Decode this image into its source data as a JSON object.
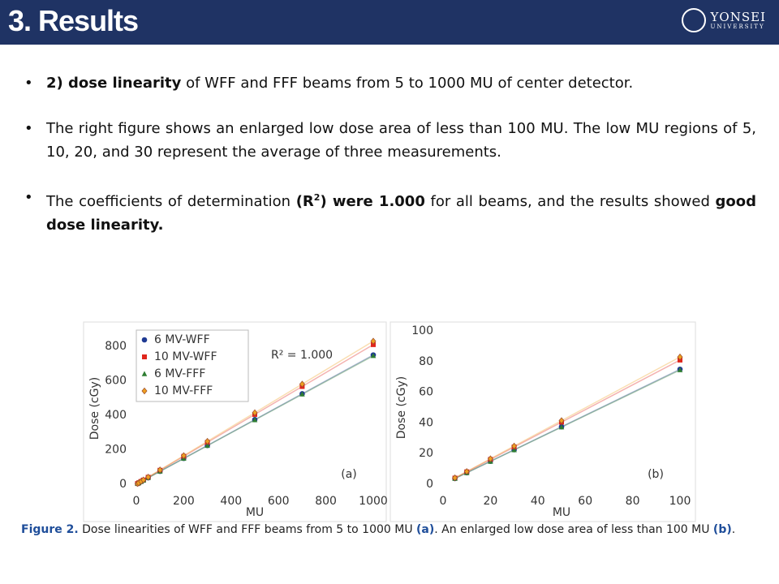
{
  "header": {
    "title": "3. Results",
    "logo_top": "YONSEI",
    "logo_bottom": "UNIVERSITY"
  },
  "bullets": [
    {
      "parts": [
        "2) dose linearity",
        " of WFF and FFF beams from 5 to 1000 MU of center detector."
      ]
    },
    {
      "parts": [
        "The right figure shows an enlarged low dose area of less than 100 MU. The low MU regions of 5, 10, 20, and 30 represent the average of three measurements."
      ]
    },
    {
      "parts": [
        "The coefficients of determination ",
        "(R",
        "2",
        ") were 1.000",
        " for all beams, and the results showed ",
        "good dose linearity."
      ]
    }
  ],
  "caption": {
    "parts": [
      "Figure 2.",
      " Dose linearities of WFF and FFF beams from 5 to 1000 MU ",
      "(a)",
      ". An enlarged low dose area of less than 100 MU ",
      "(b)",
      "."
    ]
  },
  "chart_data": [
    {
      "type": "scatter",
      "x_label": "MU",
      "y_label": "Dose (cGy)",
      "annotation": "R² = 1.000",
      "panel_label": "(a)",
      "legend": "upper left",
      "x": [
        5,
        10,
        20,
        30,
        50,
        100,
        200,
        300,
        500,
        700,
        1000
      ],
      "series": [
        {
          "name": "6 MV-WFF",
          "color": "#1f3a93",
          "marker": "circle",
          "values": [
            3.75,
            7.5,
            15,
            22.5,
            37.5,
            75,
            150,
            225,
            375,
            525,
            750
          ]
        },
        {
          "name": "10 MV-WFF",
          "color": "#e0261c",
          "marker": "square",
          "values": [
            4,
            8.1,
            16.2,
            24.3,
            40.5,
            81,
            162,
            243,
            405,
            567,
            810
          ]
        },
        {
          "name": "6 MV-FFF",
          "color": "#2e7d32",
          "marker": "triangle",
          "values": [
            3.7,
            7.4,
            14.8,
            22.3,
            37.2,
            74.5,
            149,
            224,
            373,
            522,
            745
          ]
        },
        {
          "name": "10 MV-FFF",
          "color": "#f0a020",
          "marker": "diamond",
          "values": [
            4.15,
            8.3,
            16.6,
            24.9,
            41.5,
            83,
            166,
            249,
            415,
            581,
            830
          ]
        }
      ],
      "xlim": [
        0,
        1000
      ],
      "xticks": [
        0,
        200,
        400,
        600,
        800,
        1000
      ],
      "ylim": [
        0,
        880
      ],
      "yticks": [
        0,
        200,
        400,
        600,
        800
      ]
    },
    {
      "type": "scatter",
      "x_label": "MU",
      "y_label": "Dose (cGy)",
      "panel_label": "(b)",
      "x": [
        5,
        10,
        20,
        30,
        50,
        100
      ],
      "series": [
        {
          "color": "#1f3a93",
          "marker": "circle",
          "values": [
            3.75,
            7.5,
            15,
            22.5,
            37.5,
            75
          ]
        },
        {
          "color": "#e0261c",
          "marker": "square",
          "values": [
            4,
            8.1,
            16.2,
            24.3,
            40.5,
            81
          ]
        },
        {
          "color": "#2e7d32",
          "marker": "triangle",
          "values": [
            3.7,
            7.4,
            14.8,
            22.3,
            37.2,
            74.5
          ]
        },
        {
          "color": "#f0a020",
          "marker": "diamond",
          "values": [
            4.15,
            8.3,
            16.6,
            24.9,
            41.5,
            83
          ]
        }
      ],
      "xlim": [
        0,
        100
      ],
      "xticks": [
        0,
        20,
        40,
        60,
        80,
        100
      ],
      "ylim": [
        0,
        100
      ],
      "yticks": [
        0,
        20,
        40,
        60,
        80,
        100
      ]
    }
  ]
}
